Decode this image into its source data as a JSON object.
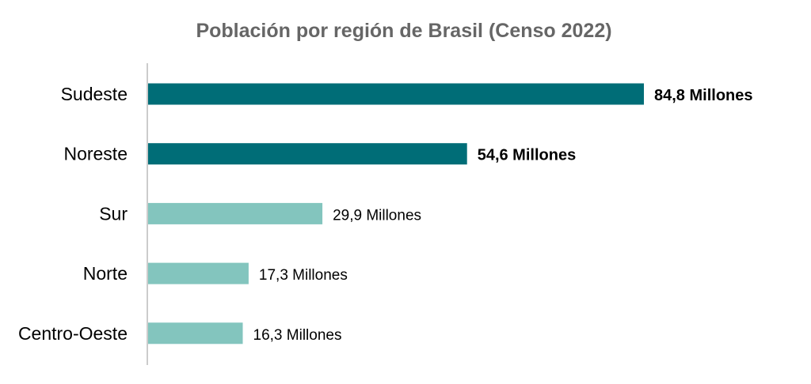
{
  "chart_data": {
    "type": "bar",
    "orientation": "horizontal",
    "title": "Población por región de Brasil (Censo 2022)",
    "xlabel": "",
    "ylabel": "",
    "unit_suffix": "Millones",
    "grid": false,
    "categories": [
      "Sudeste",
      "Noreste",
      "Sur",
      "Norte",
      "Centro-Oeste"
    ],
    "values": [
      84.8,
      54.6,
      29.9,
      17.3,
      16.3
    ],
    "value_labels": [
      "84,8 Millones",
      "54,6 Millones",
      "29,9 Millones",
      "17,3 Millones",
      "16,3 Millones"
    ],
    "highlighted": [
      true,
      true,
      false,
      false,
      false
    ],
    "colors": {
      "highlight": "#006d77",
      "normal": "#83c5be",
      "title": "#666666",
      "axis": "#cccccc",
      "text": "#000000"
    }
  }
}
